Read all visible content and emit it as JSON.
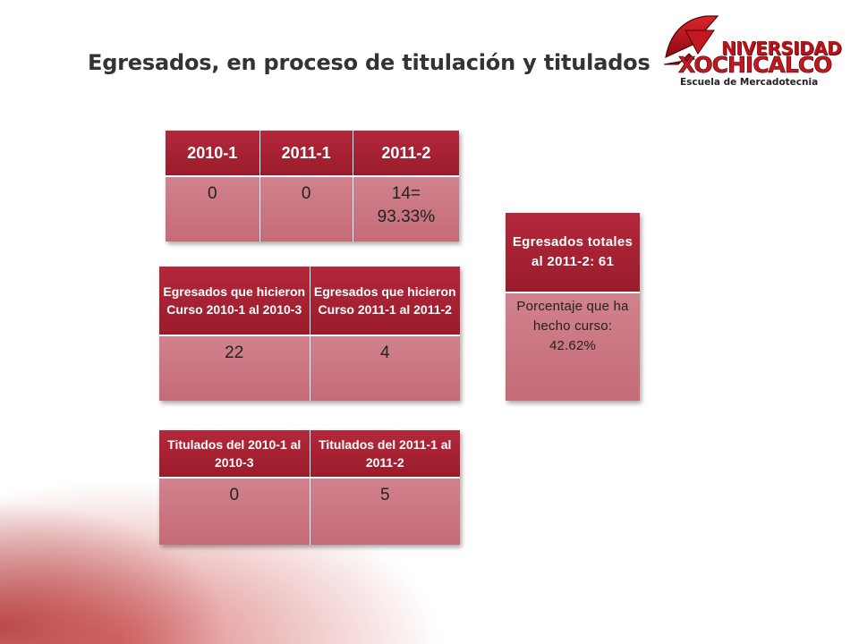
{
  "title": "Egresados, en proceso de titulación y titulados",
  "logo": {
    "line1": "NIVERSIDAD",
    "line2": "XOCHICALCO",
    "subtitle": "Escuela de Mercadotecnia",
    "brand_color": "#b8121b"
  },
  "colors": {
    "header": "#a92233",
    "cell": "#cc7884",
    "accent": "#c41820"
  },
  "table_periods": {
    "headers": [
      "2010-1",
      "2011-1",
      "2011-2"
    ],
    "values": [
      "0",
      "0",
      "14=\n93.33%"
    ]
  },
  "table_curso": {
    "headers": [
      "Egresados que hicieron Curso 2010-1 al 2010-3",
      "Egresados que hicieron Curso 2011-1 al 2011-2"
    ],
    "values": [
      "22",
      "4"
    ]
  },
  "table_titulados": {
    "headers": [
      "Titulados del 2010-1 al 2010-3",
      "Titulados del 2011-1 al 2011-2"
    ],
    "values": [
      "0",
      "5"
    ]
  },
  "table_totales": {
    "header": "Egresados totales al 2011-2: 61",
    "value": "Porcentaje que ha hecho curso: 42.62%"
  }
}
